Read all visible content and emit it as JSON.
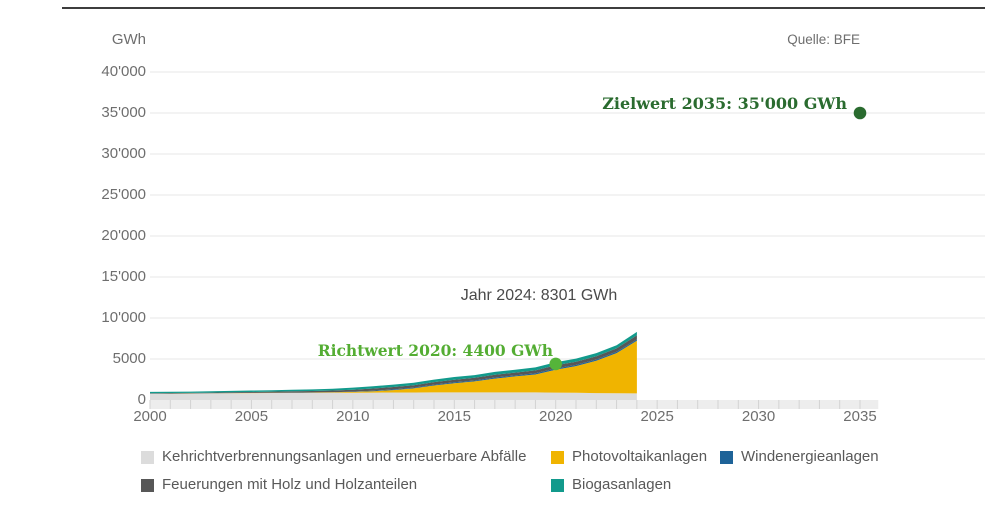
{
  "source_label": "Quelle: BFE",
  "y_axis": {
    "title": "GWh",
    "ticks": [
      {
        "label": "40'000",
        "value": 40000
      },
      {
        "label": "35'000",
        "value": 35000
      },
      {
        "label": "30'000",
        "value": 30000
      },
      {
        "label": "25'000",
        "value": 25000
      },
      {
        "label": "20'000",
        "value": 20000
      },
      {
        "label": "15'000",
        "value": 15000
      },
      {
        "label": "10'000",
        "value": 10000
      },
      {
        "label": "5000",
        "value": 5000
      },
      {
        "label": "0",
        "value": 0
      }
    ]
  },
  "x_axis": {
    "ticks": [
      {
        "label": "2000",
        "value": 2000
      },
      {
        "label": "2005",
        "value": 2005
      },
      {
        "label": "2010",
        "value": 2010
      },
      {
        "label": "2015",
        "value": 2015
      },
      {
        "label": "2020",
        "value": 2020
      },
      {
        "label": "2025",
        "value": 2025
      },
      {
        "label": "2030",
        "value": 2030
      },
      {
        "label": "2035",
        "value": 2035
      }
    ]
  },
  "annotations": {
    "jahr_2024": "Jahr 2024: 8301 GWh",
    "richtwert_2020": "Richtwert 2020: 4400 GWh",
    "zielwert_2035": "Zielwert 2035: 35'000 GWh"
  },
  "chart_data": {
    "type": "area",
    "stacked": true,
    "ylabel": "GWh",
    "source": "Quelle: BFE",
    "xlim": [
      2000,
      2035
    ],
    "ylim": [
      0,
      40000
    ],
    "grid": true,
    "legend_position": "bottom",
    "x": [
      2000,
      2001,
      2002,
      2003,
      2004,
      2005,
      2006,
      2007,
      2008,
      2009,
      2010,
      2011,
      2012,
      2013,
      2014,
      2015,
      2016,
      2017,
      2018,
      2019,
      2020,
      2021,
      2022,
      2023,
      2024
    ],
    "series": [
      {
        "name": "Kehrichtverbrennungsanlagen und erneuerbare Abfälle",
        "color": "#dcdcdc",
        "values": [
          760,
          770,
          780,
          800,
          820,
          840,
          850,
          860,
          870,
          880,
          890,
          900,
          910,
          920,
          930,
          930,
          930,
          930,
          930,
          930,
          900,
          880,
          840,
          820,
          800
        ]
      },
      {
        "name": "Photovoltaikanlagen",
        "color": "#f0b400",
        "values": [
          10,
          12,
          14,
          16,
          18,
          20,
          24,
          29,
          37,
          54,
          94,
          168,
          300,
          500,
          842,
          1119,
          1333,
          1683,
          1945,
          2178,
          2800,
          3250,
          3950,
          4900,
          6430
        ]
      },
      {
        "name": "Windenergieanlagen",
        "color": "#1e6398",
        "values": [
          3,
          5,
          5,
          5,
          8,
          8,
          15,
          16,
          19,
          23,
          37,
          70,
          88,
          90,
          101,
          110,
          109,
          133,
          122,
          146,
          146,
          147,
          150,
          155,
          160
        ]
      },
      {
        "name": "Feuerungen mit Holz und Holzanteilen",
        "color": "#575757",
        "values": [
          60,
          65,
          70,
          80,
          90,
          110,
          130,
          150,
          170,
          200,
          240,
          270,
          290,
          300,
          310,
          320,
          330,
          340,
          350,
          360,
          380,
          390,
          400,
          420,
          500
        ]
      },
      {
        "name": "Biogasanlagen",
        "color": "#129a8c",
        "values": [
          150,
          155,
          160,
          165,
          170,
          175,
          180,
          190,
          200,
          220,
          250,
          270,
          290,
          300,
          310,
          320,
          330,
          340,
          350,
          360,
          374,
          380,
          385,
          390,
          411
        ]
      }
    ],
    "total_2024": 8301,
    "markers": [
      {
        "name": "richtwert-2020",
        "x": 2020,
        "y": 4400,
        "color": "#55b43a",
        "label": "Richtwert 2020: 4400 GWh"
      },
      {
        "name": "zielwert-2035",
        "x": 2035,
        "y": 35000,
        "color": "#2a6b2f",
        "label": "Zielwert 2035: 35'000 GWh"
      }
    ]
  },
  "legend": {
    "rows": [
      [
        {
          "label": "Kehrichtverbrennungsanlagen und erneuerbare Abfälle",
          "color": "#dcdcdc"
        },
        {
          "label": "Photovoltaikanlagen",
          "color": "#f0b400"
        },
        {
          "label": "Windenergieanlagen",
          "color": "#1e6398"
        }
      ],
      [
        {
          "label": "Feuerungen mit Holz und Holzanteilen",
          "color": "#575757"
        },
        {
          "label": "Biogasanlagen",
          "color": "#129a8c"
        }
      ]
    ]
  }
}
